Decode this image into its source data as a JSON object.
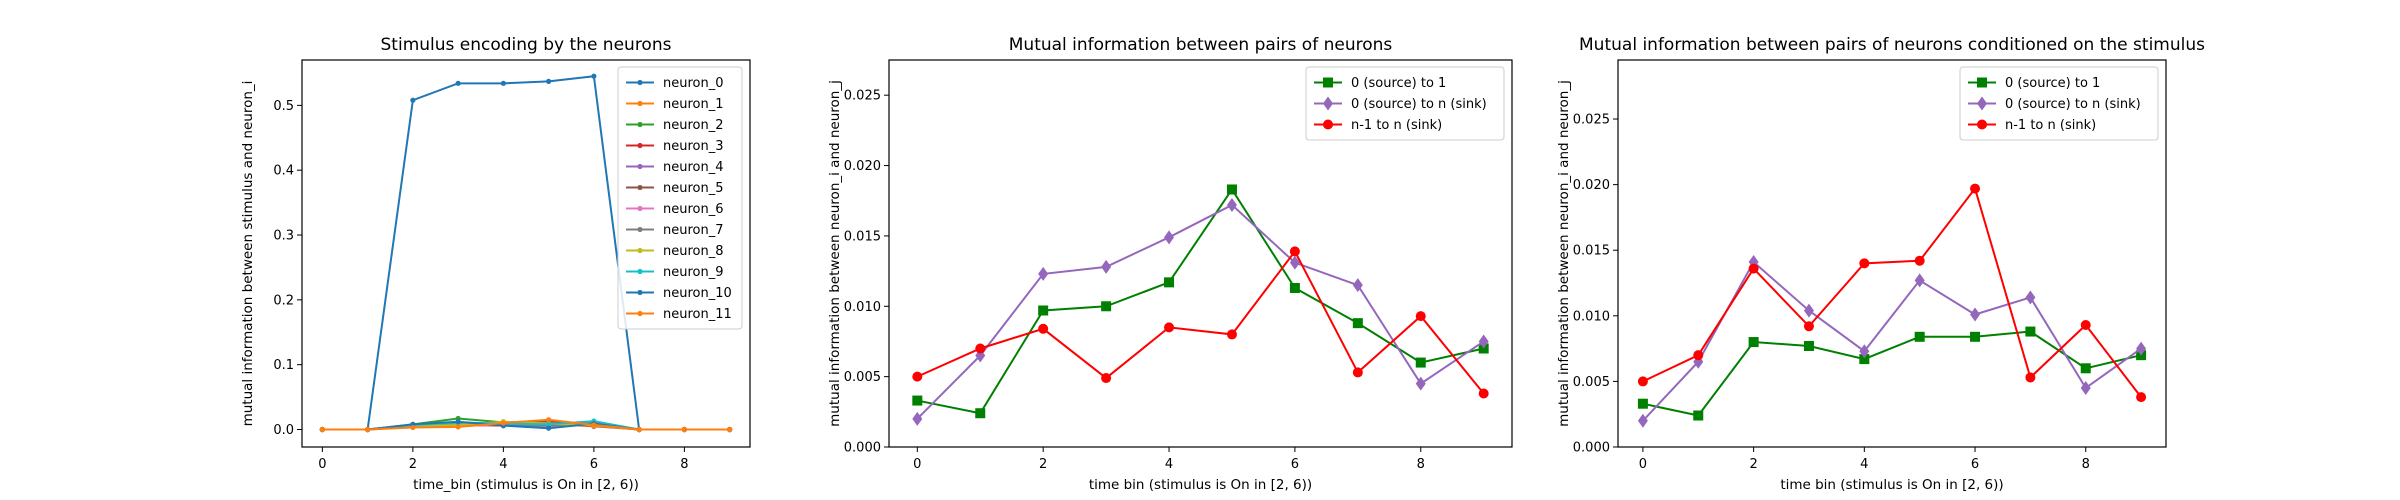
{
  "chart_data": [
    {
      "type": "line",
      "title": "Stimulus encoding by the neurons",
      "xlabel": "time_bin (stimulus is On in [2, 6))",
      "ylabel": "mutual information between stimulus and neuron_i",
      "xlim": [
        -0.45,
        9.45
      ],
      "ylim": [
        -0.027,
        0.57
      ],
      "xticks": [
        0,
        2,
        4,
        6,
        8
      ],
      "yticks": [
        0.0,
        0.1,
        0.2,
        0.3,
        0.4,
        0.5
      ],
      "ytick_labels": [
        "0.0",
        "0.1",
        "0.2",
        "0.3",
        "0.4",
        "0.5"
      ],
      "legend_position": "top-right",
      "x": [
        0,
        1,
        2,
        3,
        4,
        5,
        6,
        7,
        8,
        9
      ],
      "series": [
        {
          "name": "neuron_0",
          "color": "#1f77b4",
          "marker": "point",
          "values": [
            0.0,
            0.0,
            0.508,
            0.534,
            0.534,
            0.537,
            0.545,
            0.0,
            0.0,
            0.0
          ]
        },
        {
          "name": "neuron_1",
          "color": "#ff7f0e",
          "marker": "point",
          "values": [
            0.0,
            0.0,
            0.004,
            0.005,
            0.008,
            0.01,
            0.006,
            0.0,
            0.0,
            0.0
          ]
        },
        {
          "name": "neuron_2",
          "color": "#2ca02c",
          "marker": "point",
          "values": [
            0.0,
            0.0,
            0.008,
            0.017,
            0.011,
            0.007,
            0.012,
            0.0,
            0.0,
            0.0
          ]
        },
        {
          "name": "neuron_3",
          "color": "#d62728",
          "marker": "point",
          "values": [
            0.0,
            0.0,
            0.005,
            0.007,
            0.006,
            0.009,
            0.005,
            0.0,
            0.0,
            0.0
          ]
        },
        {
          "name": "neuron_4",
          "color": "#9467bd",
          "marker": "point",
          "values": [
            0.0,
            0.0,
            0.006,
            0.01,
            0.008,
            0.006,
            0.009,
            0.0,
            0.0,
            0.0
          ]
        },
        {
          "name": "neuron_5",
          "color": "#8c564b",
          "marker": "point",
          "values": [
            0.0,
            0.0,
            0.005,
            0.008,
            0.011,
            0.013,
            0.007,
            0.0,
            0.0,
            0.0
          ]
        },
        {
          "name": "neuron_6",
          "color": "#e377c2",
          "marker": "point",
          "values": [
            0.0,
            0.0,
            0.004,
            0.006,
            0.007,
            0.005,
            0.008,
            0.0,
            0.0,
            0.0
          ]
        },
        {
          "name": "neuron_7",
          "color": "#7f7f7f",
          "marker": "point",
          "values": [
            0.0,
            0.0,
            0.006,
            0.009,
            0.007,
            0.006,
            0.01,
            0.0,
            0.0,
            0.0
          ]
        },
        {
          "name": "neuron_8",
          "color": "#bcbd22",
          "marker": "point",
          "values": [
            0.0,
            0.0,
            0.005,
            0.007,
            0.012,
            0.009,
            0.006,
            0.0,
            0.0,
            0.0
          ]
        },
        {
          "name": "neuron_9",
          "color": "#17becf",
          "marker": "point",
          "values": [
            0.0,
            0.0,
            0.007,
            0.011,
            0.009,
            0.008,
            0.013,
            0.0,
            0.0,
            0.0
          ]
        },
        {
          "name": "neuron_10",
          "color": "#1f77b4",
          "marker": "point",
          "values": [
            0.0,
            0.0,
            0.008,
            0.012,
            0.006,
            0.002,
            0.009,
            0.0,
            0.0,
            0.0
          ]
        },
        {
          "name": "neuron_11",
          "color": "#ff7f0e",
          "marker": "point",
          "values": [
            0.0,
            0.0,
            0.003,
            0.004,
            0.01,
            0.015,
            0.007,
            0.0,
            0.0,
            0.0
          ]
        }
      ]
    },
    {
      "type": "line",
      "title": "Mutual information between pairs of neurons",
      "xlabel": "time bin (stimulus is On in [2, 6))",
      "ylabel": "mutual information between neuron_i and neuron_j",
      "xlim": [
        -0.45,
        9.45
      ],
      "ylim": [
        0.0,
        0.0275
      ],
      "xticks": [
        0,
        2,
        4,
        6,
        8
      ],
      "yticks": [
        0.0,
        0.005,
        0.01,
        0.015,
        0.02,
        0.025
      ],
      "ytick_labels": [
        "0.000",
        "0.005",
        "0.010",
        "0.015",
        "0.020",
        "0.025"
      ],
      "legend_position": "top-right",
      "x": [
        0,
        1,
        2,
        3,
        4,
        5,
        6,
        7,
        8,
        9
      ],
      "series": [
        {
          "name": "0 (source) to 1",
          "color": "#008000",
          "marker": "square",
          "values": [
            0.0033,
            0.0024,
            0.0097,
            0.01,
            0.0117,
            0.0183,
            0.0113,
            0.0088,
            0.006,
            0.007
          ]
        },
        {
          "name": "0 (source) to n (sink)",
          "color": "#9467bd",
          "marker": "diamond",
          "values": [
            0.002,
            0.0065,
            0.0123,
            0.0128,
            0.0149,
            0.0172,
            0.0131,
            0.0115,
            0.0045,
            0.0075
          ]
        },
        {
          "name": "n-1 to n (sink)",
          "color": "#ff0000",
          "marker": "circle",
          "values": [
            0.005,
            0.007,
            0.0084,
            0.0049,
            0.0085,
            0.008,
            0.0139,
            0.0053,
            0.0093,
            0.0038
          ]
        }
      ]
    },
    {
      "type": "line",
      "title": "Mutual information between pairs of neurons conditioned on the stimulus",
      "xlabel": "time bin (stimulus is On in [2, 6))",
      "ylabel": "mutual information between neuron_i and neuron_j",
      "xlim": [
        -0.45,
        9.45
      ],
      "ylim": [
        0.0,
        0.0295
      ],
      "xticks": [
        0,
        2,
        4,
        6,
        8
      ],
      "yticks": [
        0.0,
        0.005,
        0.01,
        0.015,
        0.02,
        0.025
      ],
      "ytick_labels": [
        "0.000",
        "0.005",
        "0.010",
        "0.015",
        "0.020",
        "0.025"
      ],
      "legend_position": "top-right",
      "x": [
        0,
        1,
        2,
        3,
        4,
        5,
        6,
        7,
        8,
        9
      ],
      "series": [
        {
          "name": "0 (source) to 1",
          "color": "#008000",
          "marker": "square",
          "values": [
            0.0033,
            0.0024,
            0.008,
            0.0077,
            0.0067,
            0.0084,
            0.0084,
            0.0088,
            0.006,
            0.007
          ]
        },
        {
          "name": "0 (source) to n (sink)",
          "color": "#9467bd",
          "marker": "diamond",
          "values": [
            0.002,
            0.0065,
            0.0141,
            0.0104,
            0.0073,
            0.0127,
            0.0101,
            0.0114,
            0.0045,
            0.0075
          ]
        },
        {
          "name": "n-1 to n (sink)",
          "color": "#ff0000",
          "marker": "circle",
          "values": [
            0.005,
            0.007,
            0.0136,
            0.0092,
            0.014,
            0.0142,
            0.0197,
            0.0053,
            0.0093,
            0.0038
          ]
        }
      ]
    }
  ]
}
